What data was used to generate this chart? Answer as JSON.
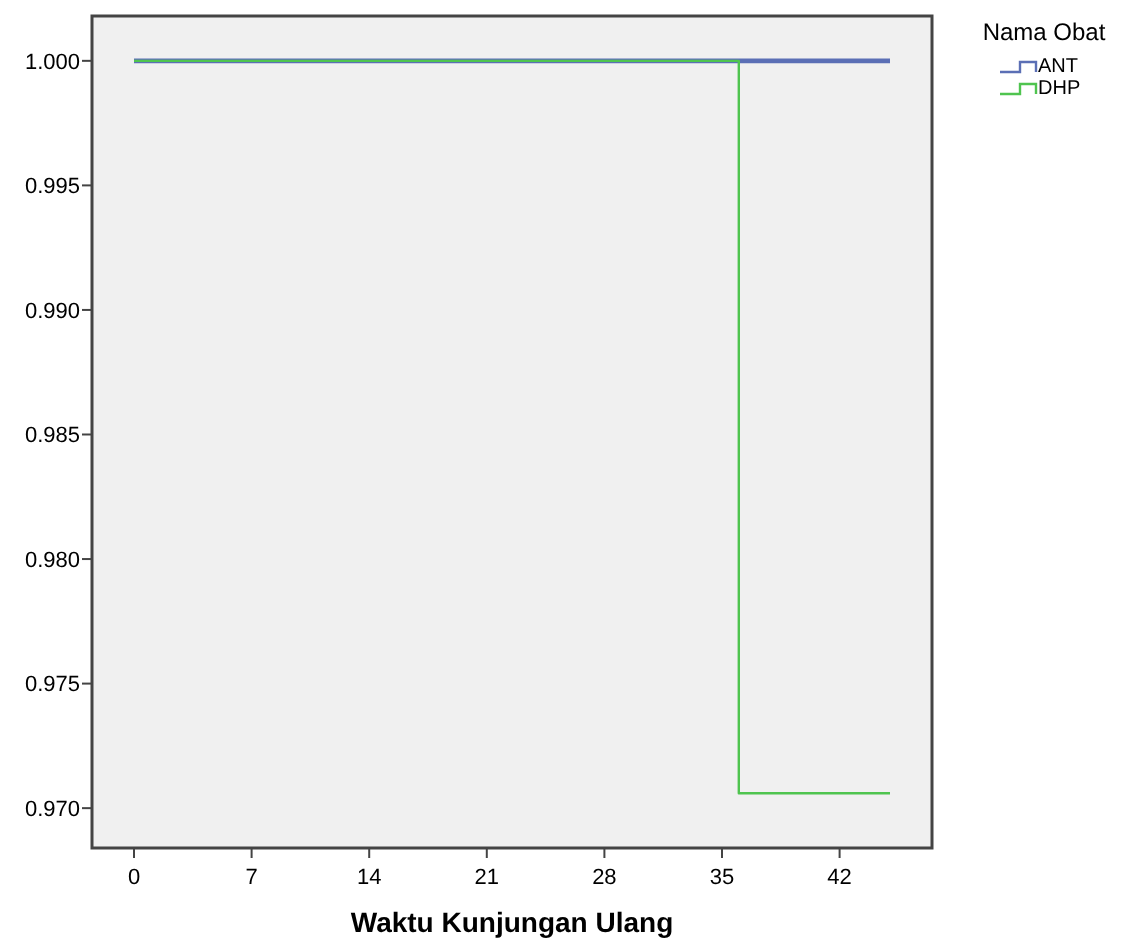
{
  "chart_data": {
    "type": "step",
    "xlabel": "Waktu Kunjungan Ulang",
    "legend_title": "Nama Obat",
    "legend": "top right",
    "grid": false,
    "xlim": [
      -2.5,
      47.5
    ],
    "xticks": [
      0,
      7,
      14,
      21,
      28,
      35,
      42
    ],
    "ylim": [
      0.9684,
      1.0018
    ],
    "yticks": [
      {
        "value": 0.97,
        "label": "0.970"
      },
      {
        "value": 0.975,
        "label": "0.975"
      },
      {
        "value": 0.98,
        "label": "0.980"
      },
      {
        "value": 0.985,
        "label": "0.985"
      },
      {
        "value": 0.99,
        "label": "0.990"
      },
      {
        "value": 0.995,
        "label": "0.995"
      },
      {
        "value": 1,
        "label": "1.000"
      }
    ],
    "series": [
      {
        "name": "ANT",
        "color": "#5b6fb5",
        "x": [
          0,
          45
        ],
        "values": [
          1,
          1
        ]
      },
      {
        "name": "DHP",
        "color": "#4fc44f",
        "x": [
          0,
          36,
          45
        ],
        "values": [
          1,
          0.9706,
          0.9706
        ]
      }
    ]
  }
}
